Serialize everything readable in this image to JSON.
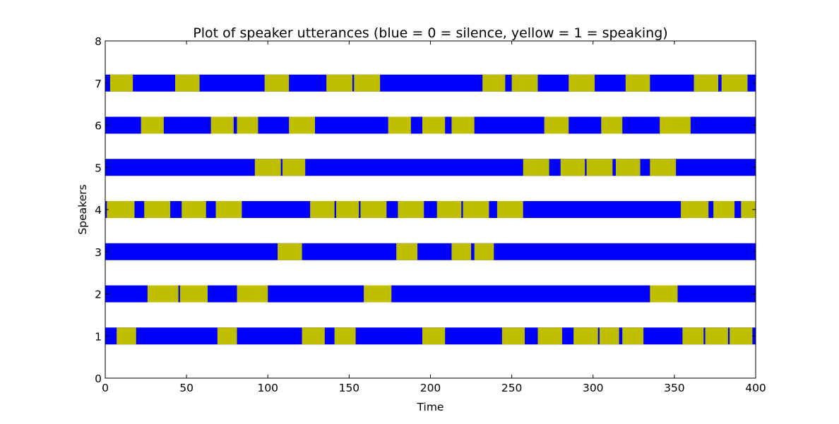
{
  "chart_data": {
    "type": "bar",
    "orientation": "horizontal-segments",
    "title": "Plot of speaker utterances (blue = 0 = silence, yellow = 1 = speaking)",
    "xlabel": "Time",
    "ylabel": "Speakers",
    "xlim": [
      0,
      400
    ],
    "ylim": [
      0,
      8
    ],
    "xticks": [
      "0",
      "50",
      "100",
      "150",
      "200",
      "250",
      "300",
      "350",
      "400"
    ],
    "yticks": [
      "0",
      "1",
      "2",
      "3",
      "4",
      "5",
      "6",
      "7",
      "8"
    ],
    "grid": false,
    "colors": {
      "silence": "#0000ff",
      "speaking": "#bfbf00"
    },
    "series": [
      {
        "y": 1,
        "speaking": [
          [
            7,
            19
          ],
          [
            69,
            81
          ],
          [
            121,
            135
          ],
          [
            141,
            154
          ],
          [
            195,
            209
          ],
          [
            244,
            258
          ],
          [
            266,
            281
          ],
          [
            288,
            303
          ],
          [
            304,
            316
          ],
          [
            318,
            331
          ],
          [
            355,
            368
          ],
          [
            369,
            383
          ],
          [
            384,
            398
          ]
        ]
      },
      {
        "y": 2,
        "speaking": [
          [
            26,
            45
          ],
          [
            46,
            63
          ],
          [
            81,
            100
          ],
          [
            159,
            176
          ],
          [
            335,
            352
          ]
        ]
      },
      {
        "y": 3,
        "speaking": [
          [
            106,
            121
          ],
          [
            179,
            192
          ],
          [
            213,
            225
          ],
          [
            227,
            239
          ]
        ]
      },
      {
        "y": 4,
        "speaking": [
          [
            1,
            18
          ],
          [
            24,
            40
          ],
          [
            47,
            62
          ],
          [
            68,
            84
          ],
          [
            126,
            141
          ],
          [
            142,
            156
          ],
          [
            157,
            173
          ],
          [
            180,
            196
          ],
          [
            204,
            219
          ],
          [
            220,
            236
          ],
          [
            241,
            257
          ],
          [
            354,
            371
          ],
          [
            374,
            387
          ],
          [
            391,
            400
          ]
        ]
      },
      {
        "y": 5,
        "speaking": [
          [
            92,
            108
          ],
          [
            109,
            123
          ],
          [
            257,
            273
          ],
          [
            280,
            295
          ],
          [
            296,
            312
          ],
          [
            314,
            329
          ],
          [
            335,
            351
          ]
        ]
      },
      {
        "y": 6,
        "speaking": [
          [
            22,
            36
          ],
          [
            65,
            79
          ],
          [
            81,
            94
          ],
          [
            113,
            129
          ],
          [
            174,
            188
          ],
          [
            195,
            209
          ],
          [
            213,
            227
          ],
          [
            270,
            285
          ],
          [
            305,
            318
          ],
          [
            341,
            360
          ]
        ]
      },
      {
        "y": 7,
        "speaking": [
          [
            3,
            17
          ],
          [
            43,
            58
          ],
          [
            98,
            113
          ],
          [
            136,
            152
          ],
          [
            153,
            169
          ],
          [
            232,
            246
          ],
          [
            250,
            266
          ],
          [
            285,
            301
          ],
          [
            320,
            335
          ],
          [
            362,
            377
          ],
          [
            379,
            395
          ]
        ]
      }
    ]
  }
}
